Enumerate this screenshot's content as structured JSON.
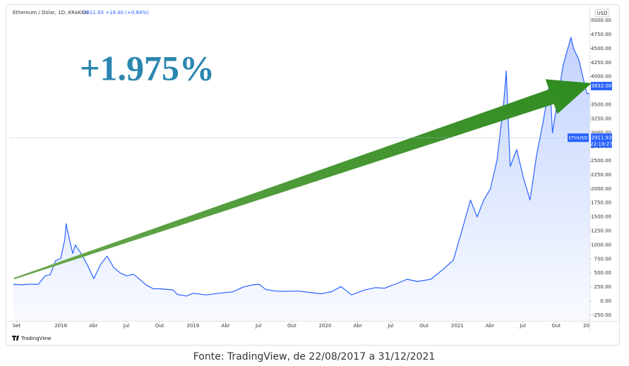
{
  "chart_data": {
    "type": "line",
    "header": "Ethereum / Dolar, 1D, KRAKEN",
    "quote": "2911.93 +18.40 (+0.64%)",
    "axis_unit": "USD",
    "annotation": "+1.975%",
    "symbol": "ETHUSD",
    "clock": "22:19:27",
    "brand": "TradingView",
    "caption": "Fonte: TradingView, de 22/08/2017 a 31/12/2021",
    "color": "#2962ff",
    "grid": false,
    "xlim": [
      2017.62,
      2022.0
    ],
    "ylim": [
      -352,
      5240
    ],
    "xticks": [
      {
        "value": 2017.666,
        "label": "Set"
      },
      2018,
      {
        "value": 2018.247,
        "label": "Abr"
      },
      {
        "value": 2018.496,
        "label": "Jul"
      },
      {
        "value": 2018.748,
        "label": "Out"
      },
      2019,
      {
        "value": 2019.247,
        "label": "Abr"
      },
      {
        "value": 2019.496,
        "label": "Jul"
      },
      {
        "value": 2019.748,
        "label": "Out"
      },
      2020,
      {
        "value": 2020.247,
        "label": "Abr"
      },
      {
        "value": 2020.496,
        "label": "Jul"
      },
      {
        "value": 2020.748,
        "label": "Out"
      },
      2021,
      {
        "value": 2021.247,
        "label": "Abr"
      },
      {
        "value": 2021.496,
        "label": "Jul"
      },
      {
        "value": 2021.748,
        "label": "Out"
      },
      {
        "value": 2022,
        "label": "20"
      }
    ],
    "yticks": [
      {
        "value": -250,
        "label": "-250.00"
      },
      {
        "value": 0,
        "label": "0.00"
      },
      {
        "value": 250,
        "label": "250.00"
      },
      {
        "value": 500,
        "label": "500.00"
      },
      {
        "value": 750,
        "label": "750.00"
      },
      {
        "value": 1000,
        "label": "1000.00"
      },
      {
        "value": 1250,
        "label": "1250.00"
      },
      {
        "value": 1500,
        "label": "1500.00"
      },
      {
        "value": 1750,
        "label": "1750.00"
      },
      {
        "value": 2000,
        "label": "2000.00"
      },
      {
        "value": 2250,
        "label": "2250.00"
      },
      {
        "value": 2500,
        "label": "2500.00"
      },
      {
        "value": 2750,
        "label": "2750.00"
      },
      {
        "value": 3000,
        "label": "3000.00"
      },
      {
        "value": 3250,
        "label": "3250.00"
      },
      {
        "value": 3500,
        "label": "3500.00"
      },
      {
        "value": 4000,
        "label": "4000.00"
      },
      {
        "value": 4250,
        "label": "4250.00"
      },
      {
        "value": 4500,
        "label": "4500.00"
      },
      {
        "value": 4750,
        "label": "4750.00"
      },
      {
        "value": 5000,
        "label": "5000.00"
      }
    ],
    "price_labels": [
      {
        "value": 3832,
        "label": "3832.00"
      },
      {
        "value": 2911.93,
        "label": "2911.93"
      }
    ],
    "x": [
      2017.64,
      2017.7,
      2017.75,
      2017.83,
      2017.88,
      2017.92,
      2017.96,
      2018.0,
      2018.03,
      2018.04,
      2018.07,
      2018.09,
      2018.11,
      2018.15,
      2018.2,
      2018.25,
      2018.3,
      2018.35,
      2018.4,
      2018.45,
      2018.5,
      2018.55,
      2018.6,
      2018.65,
      2018.7,
      2018.75,
      2018.85,
      2018.88,
      2018.95,
      2019.0,
      2019.1,
      2019.2,
      2019.3,
      2019.38,
      2019.45,
      2019.5,
      2019.55,
      2019.62,
      2019.7,
      2019.8,
      2019.9,
      2019.97,
      2020.05,
      2020.12,
      2020.2,
      2020.3,
      2020.38,
      2020.45,
      2020.55,
      2020.62,
      2020.7,
      2020.8,
      2020.9,
      2020.97,
      2021.04,
      2021.1,
      2021.15,
      2021.2,
      2021.25,
      2021.3,
      2021.35,
      2021.37,
      2021.4,
      2021.45,
      2021.5,
      2021.55,
      2021.6,
      2021.65,
      2021.7,
      2021.72,
      2021.76,
      2021.8,
      2021.86,
      2021.88,
      2021.92,
      2021.95,
      2021.98,
      2022.0
    ],
    "values": [
      300,
      290,
      300,
      300,
      450,
      470,
      720,
      760,
      1100,
      1380,
      1050,
      850,
      1000,
      860,
      650,
      400,
      650,
      800,
      600,
      500,
      450,
      480,
      380,
      280,
      220,
      220,
      200,
      120,
      90,
      140,
      110,
      140,
      165,
      250,
      290,
      300,
      210,
      180,
      175,
      180,
      150,
      130,
      170,
      260,
      110,
      200,
      240,
      230,
      320,
      390,
      350,
      390,
      580,
      730,
      1300,
      1800,
      1500,
      1800,
      2000,
      2500,
      3500,
      4100,
      2400,
      2700,
      2200,
      1800,
      2600,
      3200,
      3900,
      3000,
      3600,
      4200,
      4700,
      4500,
      4300,
      4000,
      3700,
      3700
    ]
  }
}
